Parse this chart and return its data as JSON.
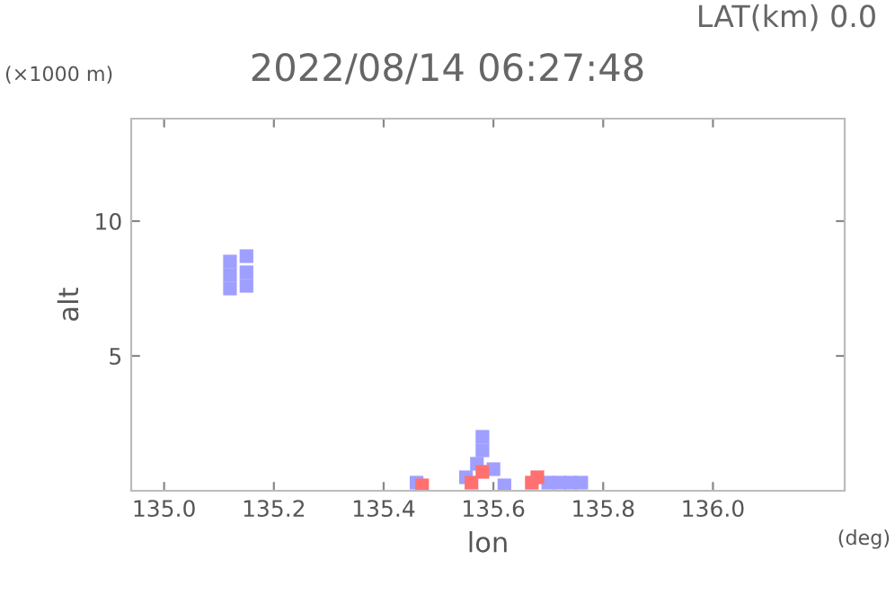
{
  "chart_data": {
    "type": "scatter",
    "title": "2022/08/14 06:27:48",
    "subtitle": "LAT(km) 0.0",
    "xlabel": "lon",
    "ylabel": "alt",
    "annotations": [
      "(×1000 m)",
      "(deg)"
    ],
    "series": [
      {
        "color": "#9f9fff",
        "x": [
          135.12,
          135.12,
          135.12,
          135.15,
          135.15,
          135.15,
          135.46,
          135.55,
          135.57,
          135.58,
          135.58,
          135.6,
          135.62,
          135.7,
          135.72,
          135.74,
          135.76
        ],
        "values": [
          7.5,
          8.0,
          8.5,
          7.6,
          8.1,
          8.7,
          0.3,
          0.5,
          1.0,
          1.5,
          2.0,
          0.8,
          0.2,
          0.3,
          0.3,
          0.3,
          0.3
        ]
      },
      {
        "color": "#ff7070",
        "x": [
          135.47,
          135.56,
          135.58,
          135.67,
          135.68
        ],
        "values": [
          0.2,
          0.3,
          0.7,
          0.3,
          0.5
        ]
      }
    ],
    "marker": "square",
    "xlim": [
      134.94,
      136.24
    ],
    "xticks": [
      {
        "value": 135,
        "label": "135.0"
      },
      135.2,
      135.4,
      135.6,
      135.8,
      {
        "value": 136,
        "label": "136.0"
      }
    ],
    "ylim": [
      0,
      13.8
    ],
    "yticks": [
      5,
      10
    ],
    "grid": false
  }
}
